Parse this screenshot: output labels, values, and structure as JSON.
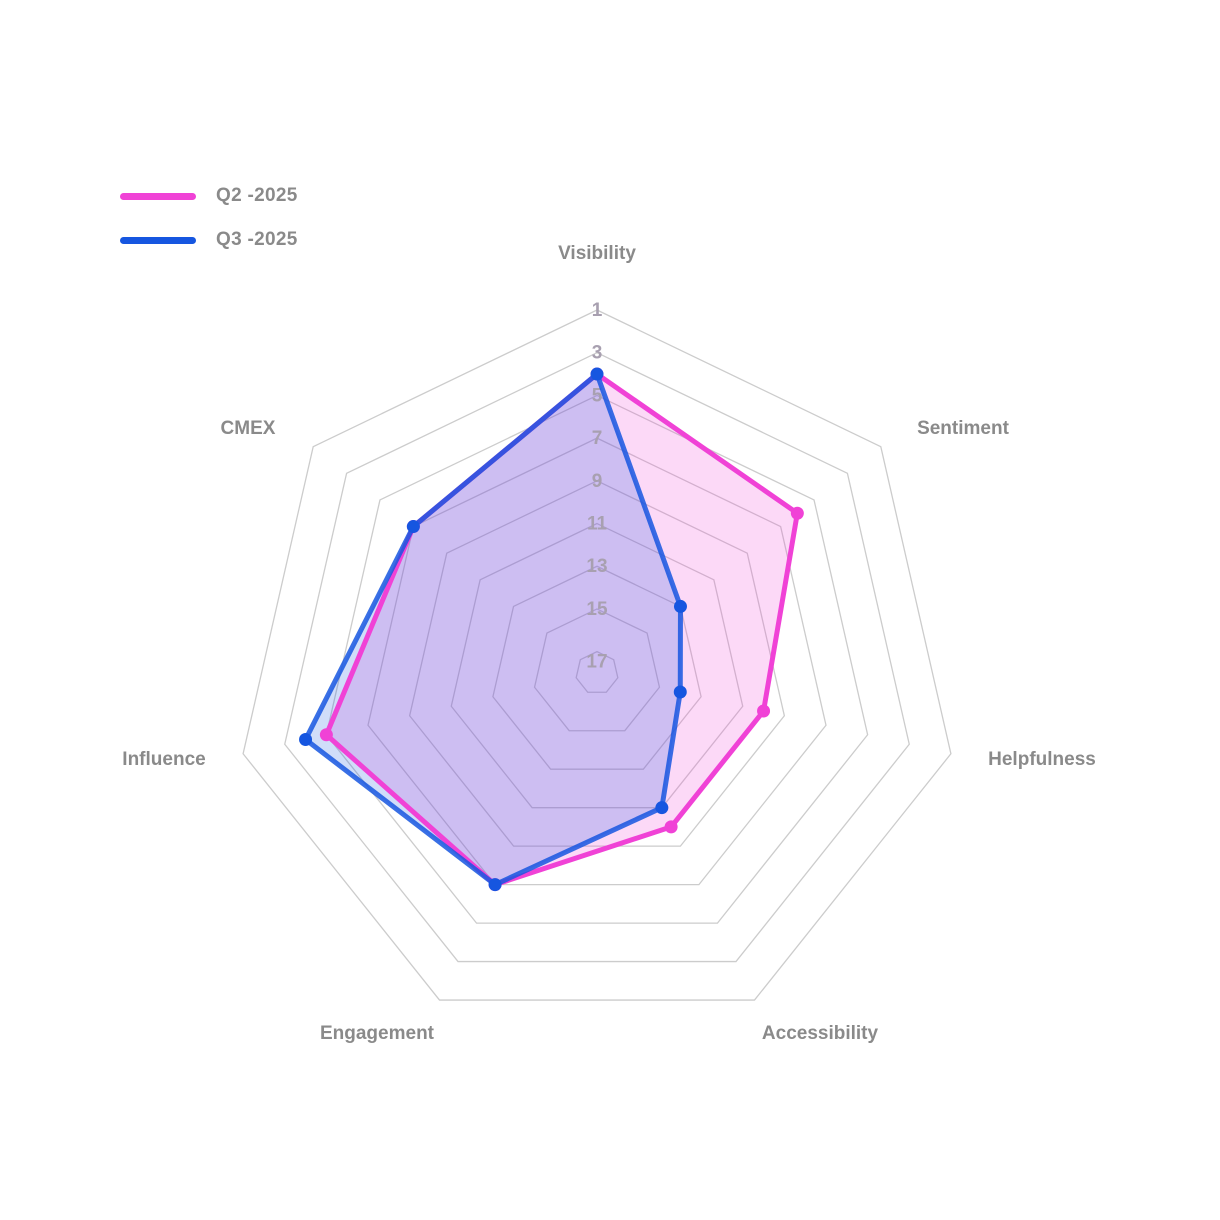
{
  "chart_data": {
    "type": "radar",
    "axes": [
      "Visibility",
      "Sentiment",
      "Helpfulness",
      "Accessibility",
      "Engagement",
      "Influence",
      "CMEX"
    ],
    "scale": {
      "range": [
        1,
        18
      ],
      "reversed": true,
      "ticks": [
        1,
        3,
        5,
        7,
        9,
        11,
        13,
        15,
        17
      ]
    },
    "series": [
      {
        "name": "Q2 -2025",
        "color": "#f042d6",
        "values": [
          4,
          6,
          10,
          10,
          7,
          5,
          7
        ]
      },
      {
        "name": "Q3 -2025",
        "color": "#1656e0",
        "values": [
          4,
          13,
          14,
          11,
          7,
          4,
          7
        ]
      }
    ],
    "legend_position": "top-left",
    "grid": true
  }
}
